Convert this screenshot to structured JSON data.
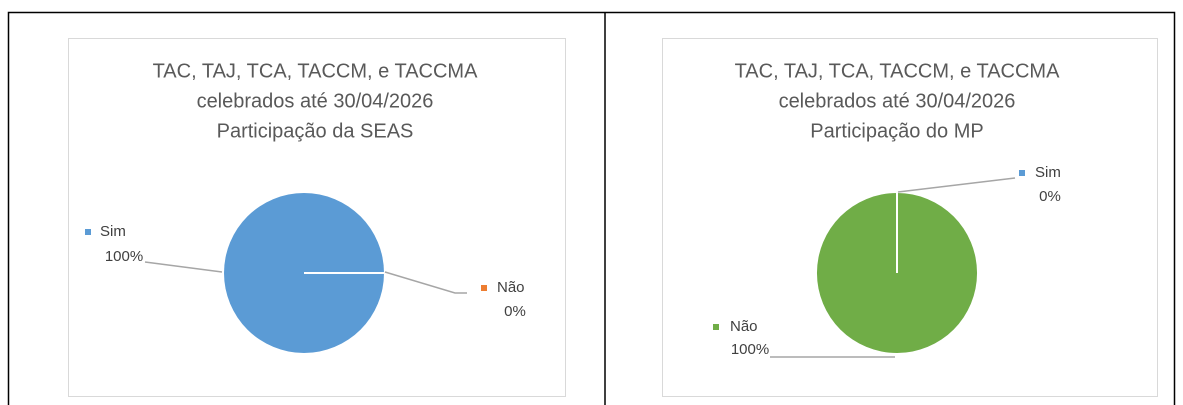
{
  "chart_data": [
    {
      "type": "pie",
      "title": [
        "TAC, TAJ, TCA, TACCM, e TACCMA",
        "celebrados até 30/04/2026",
        "Participação da SEAS"
      ],
      "categories": [
        "Sim",
        "Não"
      ],
      "values": [
        100,
        0
      ],
      "value_labels": [
        "100%",
        "0%"
      ],
      "colors": [
        "#5b9bd5",
        "#ed7d31"
      ]
    },
    {
      "type": "pie",
      "title": [
        "TAC, TAJ, TCA, TACCM, e TACCMA",
        "celebrados até 30/04/2026",
        "Participação do MP"
      ],
      "categories": [
        "Sim",
        "Não"
      ],
      "values": [
        0,
        100
      ],
      "value_labels": [
        "0%",
        "100%"
      ],
      "colors": [
        "#5b9bd5",
        "#70ad47"
      ]
    }
  ]
}
